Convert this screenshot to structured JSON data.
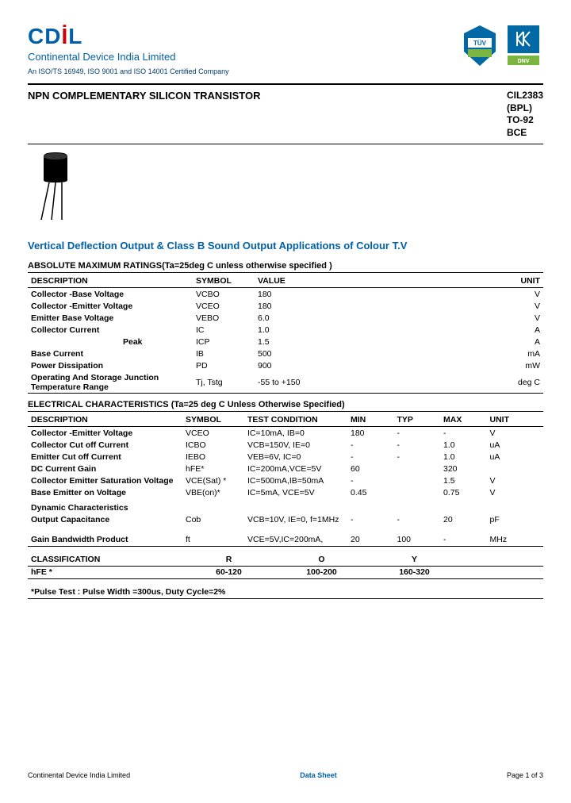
{
  "header": {
    "logo": "CDIL",
    "company": "Continental Device India Limited",
    "cert": "An ISO/TS 16949, ISO 9001 and ISO 14001 Certified Company"
  },
  "title": "NPN COMPLEMENTARY SILICON TRANSISTOR",
  "part": {
    "l1": "CIL2383",
    "l2": "(BPL)",
    "l3": "TO-92",
    "l4": "BCE"
  },
  "app_title": "Vertical Deflection Output & Class B Sound Output Applications of Colour T.V",
  "amr": {
    "header": "ABSOLUTE MAXIMUM RATINGS(Ta=25deg C unless otherwise specified )",
    "cols": {
      "desc": "DESCRIPTION",
      "sym": "SYMBOL",
      "val": "VALUE",
      "unit": "UNIT"
    },
    "rows": [
      {
        "desc": "Collector -Base Voltage",
        "sym": "VCBO",
        "val": "180",
        "unit": "V"
      },
      {
        "desc": "Collector -Emitter Voltage",
        "sym": "VCEO",
        "val": "180",
        "unit": "V"
      },
      {
        "desc": "Emitter Base Voltage",
        "sym": "VEBO",
        "val": "6.0",
        "unit": "V"
      },
      {
        "desc": "Collector Current",
        "sym": "IC",
        "val": "1.0",
        "unit": "A"
      },
      {
        "desc": "Peak",
        "sym": "ICP",
        "val": "1.5",
        "unit": "A",
        "indent": true
      },
      {
        "desc": "Base Current",
        "sym": "IB",
        "val": "500",
        "unit": "mA"
      },
      {
        "desc": "Power Dissipation",
        "sym": "PD",
        "val": "900",
        "unit": "mW"
      },
      {
        "desc": "Operating And Storage Junction Temperature Range",
        "sym": "Tj, Tstg",
        "val": "-55 to +150",
        "unit": "deg C"
      }
    ]
  },
  "elec": {
    "header": "ELECTRICAL CHARACTERISTICS (Ta=25 deg C Unless Otherwise Specified)",
    "cols": {
      "desc": "DESCRIPTION",
      "sym": "SYMBOL",
      "cond": "TEST CONDITION",
      "min": "MIN",
      "typ": "TYP",
      "max": "MAX",
      "unit": "UNIT"
    },
    "rows": [
      {
        "desc": "Collector -Emitter Voltage",
        "sym": "VCEO",
        "cond": "IC=10mA, IB=0",
        "min": "180",
        "typ": "-",
        "max": "-",
        "unit": "V"
      },
      {
        "desc": "Collector Cut off Current",
        "sym": "ICBO",
        "cond": "VCB=150V, IE=0",
        "min": "-",
        "typ": "-",
        "max": "1.0",
        "unit": "uA"
      },
      {
        "desc": "Emitter Cut off Current",
        "sym": "IEBO",
        "cond": "VEB=6V, IC=0",
        "min": "-",
        "typ": "-",
        "max": "1.0",
        "unit": "uA"
      },
      {
        "desc": "DC Current Gain",
        "sym": "hFE*",
        "cond": "IC=200mA,VCE=5V",
        "min": "60",
        "typ": "",
        "max": "320",
        "unit": ""
      },
      {
        "desc": "Collector Emitter Saturation Voltage",
        "sym": "VCE(Sat) *",
        "cond": "IC=500mA,IB=50mA",
        "min": "-",
        "typ": "",
        "max": "1.5",
        "unit": "V"
      },
      {
        "desc": "Base Emitter on Voltage",
        "sym": "VBE(on)*",
        "cond": "IC=5mA, VCE=5V",
        "min": "0.45",
        "typ": "",
        "max": "0.75",
        "unit": "V"
      }
    ],
    "dyn_header": "Dynamic Characteristics",
    "dyn_rows": [
      {
        "desc": "Output Capacitance",
        "sym": "Cob",
        "cond": "VCB=10V, IE=0, f=1MHz",
        "min": "-",
        "typ": "-",
        "max": "20",
        "unit": "pF"
      },
      {
        "desc": "Gain Bandwidth Product",
        "sym": "ft",
        "cond": "VCE=5V,IC=200mA,",
        "min": "20",
        "typ": "100",
        "max": "-",
        "unit": "MHz"
      }
    ]
  },
  "class": {
    "cols": {
      "c1": "CLASSIFICATION",
      "c2": "R",
      "c3": "O",
      "c4": "Y"
    },
    "row": {
      "c1": "hFE *",
      "c2": "60-120",
      "c3": "100-200",
      "c4": "160-320"
    },
    "note": "*Pulse Test : Pulse Width =300us, Duty Cycle=2%"
  },
  "footer": {
    "left": "Continental Device India Limited",
    "center": "Data Sheet",
    "right": "Page 1 of 3"
  },
  "colors": {
    "blue": "#0060a8",
    "darkblue": "#003b6f",
    "red": "#cc0000",
    "badge_green": "#7ab542",
    "badge_blue": "#0068a5"
  }
}
